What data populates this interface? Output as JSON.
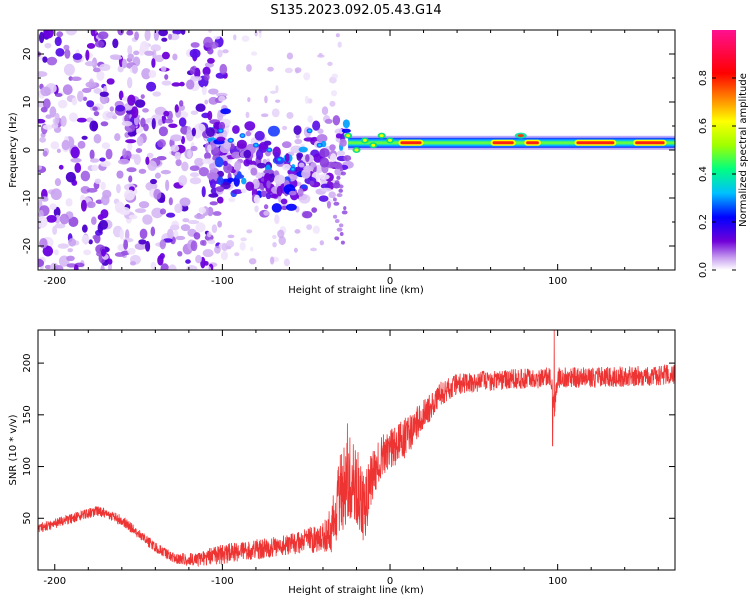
{
  "figure": {
    "title": "S135.2023.092.05.43.G14"
  },
  "chart_data": [
    {
      "type": "heatmap",
      "xlabel": "Height of straight line (km)",
      "ylabel": "Frequency (Hz)",
      "xlim": [
        -210,
        170
      ],
      "ylim": [
        -25,
        25
      ],
      "xticks": [
        -200,
        -100,
        0,
        100
      ],
      "yticks": [
        20,
        10,
        0,
        -10,
        -20
      ],
      "colorbar": {
        "label": "Normalized spectral amplitude",
        "range": [
          0.0,
          1.0
        ],
        "ticks": [
          0.0,
          0.2,
          0.4,
          0.6,
          0.8
        ],
        "colormap": [
          "#ffffff",
          "#c8a0f0",
          "#7000d8",
          "#0000ff",
          "#00c0ff",
          "#00ff80",
          "#a0ff00",
          "#ffff00",
          "#ff8000",
          "#ff0000",
          "#ff1090"
        ]
      },
      "features": {
        "scattered_noise_x_range": [
          -210,
          -110
        ],
        "scattered_noise_freq_range": [
          -25,
          25
        ],
        "transition_x_range": [
          -110,
          -25
        ],
        "transition_freq_center": [
          2,
          -5
        ],
        "carrier_x_range": [
          -25,
          170
        ],
        "carrier_freq_hz": 1.5,
        "strong_segments_x": [
          [
            5,
            20
          ],
          [
            60,
            75
          ],
          [
            80,
            90
          ],
          [
            110,
            135
          ],
          [
            145,
            165
          ]
        ]
      }
    },
    {
      "type": "line",
      "xlabel": "Height of straight line (km)",
      "ylabel": "SNR (10 * v/v)",
      "xlim": [
        -210,
        170
      ],
      "ylim": [
        0,
        232
      ],
      "xticks": [
        -200,
        -100,
        0,
        100
      ],
      "yticks": [
        50,
        100,
        150,
        200
      ],
      "color": "#ee3333",
      "series": [
        {
          "x": [
            -210,
            -200,
            -190,
            -180,
            -175,
            -170,
            -160,
            -150,
            -140,
            -130,
            -120,
            -110,
            -100,
            -90,
            -80,
            -70,
            -60,
            -50,
            -40,
            -35,
            -30,
            -25,
            -20,
            -15,
            -10,
            -5,
            0,
            10,
            20,
            30,
            40,
            60,
            80,
            96,
            98,
            100,
            120,
            140,
            160,
            170
          ],
          "values": [
            40,
            45,
            50,
            55,
            57,
            55,
            48,
            35,
            22,
            12,
            10,
            12,
            15,
            18,
            20,
            22,
            25,
            28,
            32,
            40,
            70,
            100,
            80,
            60,
            95,
            110,
            115,
            130,
            150,
            170,
            180,
            183,
            185,
            186,
            155,
            186,
            186,
            187,
            188,
            190
          ],
          "noise_amplitude": [
            5,
            5,
            5,
            5,
            5,
            5,
            5,
            5,
            5,
            5,
            6,
            8,
            10,
            10,
            10,
            10,
            10,
            12,
            15,
            25,
            40,
            50,
            40,
            35,
            25,
            20,
            20,
            20,
            15,
            12,
            10,
            10,
            10,
            10,
            10,
            10,
            10,
            10,
            10,
            10
          ]
        }
      ],
      "annotations": {
        "spike_up_x": 98,
        "spike_up_value": 232,
        "spike_down_x": 97,
        "spike_down_value": 120
      }
    }
  ]
}
